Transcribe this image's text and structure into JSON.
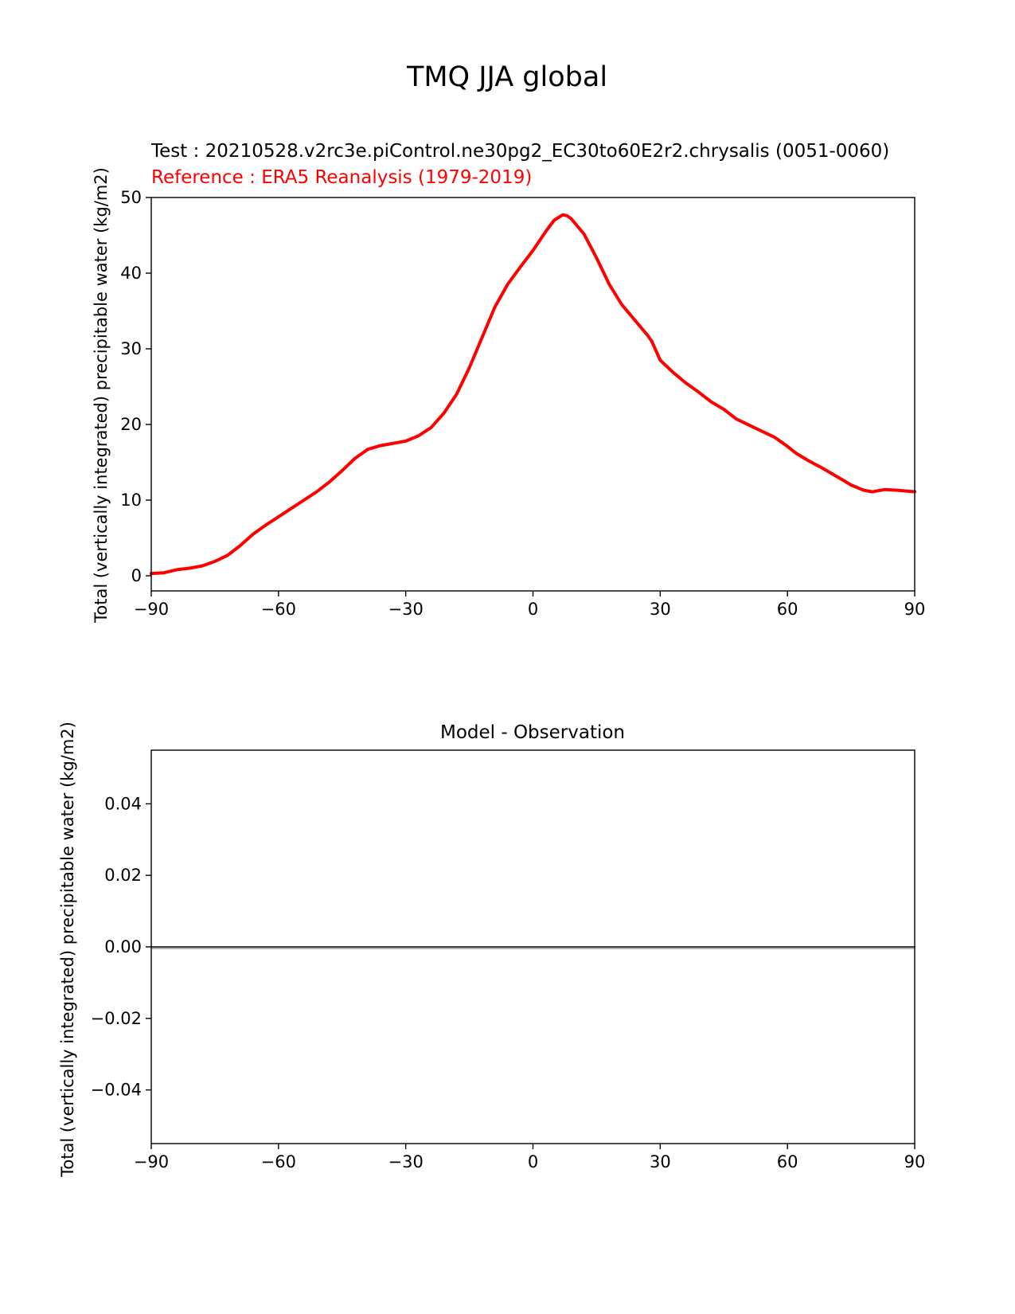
{
  "suptitle": "TMQ JJA global",
  "chart_data": [
    {
      "type": "line",
      "title_test": "Test : 20210528.v2rc3e.piControl.ne30pg2_EC30to60E2r2.chrysalis (0051-0060)",
      "title_reference": "Reference : ERA5 Reanalysis (1979-2019)",
      "ylabel": "Total (vertically integrated) precipitable water (kg/m2)",
      "xlim": [
        -90,
        90
      ],
      "ylim": [
        -2,
        50
      ],
      "xticks": [
        -90,
        -60,
        -30,
        0,
        30,
        60,
        90
      ],
      "xtick_labels": [
        "−90",
        "−60",
        "−30",
        "0",
        "30",
        "60",
        "90"
      ],
      "yticks": [
        0,
        10,
        20,
        30,
        40,
        50
      ],
      "ytick_labels": [
        "0",
        "10",
        "20",
        "30",
        "40",
        "50"
      ],
      "grid": false,
      "series": [
        {
          "color": "#ff0000",
          "x": [
            -90,
            -87,
            -84,
            -81,
            -78,
            -75,
            -72,
            -69,
            -66,
            -63,
            -60,
            -57,
            -54,
            -51,
            -48,
            -45,
            -42,
            -39,
            -36,
            -33,
            -30,
            -27,
            -24,
            -21,
            -18,
            -15,
            -12,
            -9,
            -6,
            -3,
            0,
            3,
            5,
            7,
            8,
            9,
            12,
            15,
            18,
            21,
            24,
            27,
            28,
            30,
            33,
            36,
            39,
            42,
            45,
            48,
            51,
            54,
            57,
            60,
            62,
            65,
            68,
            72,
            75,
            78,
            80,
            83,
            86,
            90
          ],
          "y": [
            0.3,
            0.4,
            0.8,
            1.0,
            1.3,
            1.9,
            2.7,
            4.0,
            5.5,
            6.7,
            7.8,
            8.9,
            10.0,
            11.1,
            12.4,
            13.9,
            15.5,
            16.7,
            17.2,
            17.5,
            17.8,
            18.5,
            19.6,
            21.5,
            24.0,
            27.5,
            31.5,
            35.5,
            38.5,
            40.8,
            43.0,
            45.5,
            47.0,
            47.7,
            47.6,
            47.2,
            45.2,
            42.0,
            38.5,
            35.8,
            33.8,
            31.8,
            31.0,
            28.5,
            26.9,
            25.5,
            24.3,
            23.0,
            22.0,
            20.7,
            19.9,
            19.1,
            18.3,
            17.1,
            16.2,
            15.2,
            14.3,
            13.0,
            12.0,
            11.3,
            11.1,
            11.4,
            11.3,
            11.1
          ]
        }
      ]
    },
    {
      "type": "line",
      "title": "Model - Observation",
      "ylabel": "Total (vertically integrated) precipitable water (kg/m2)",
      "xlim": [
        -90,
        90
      ],
      "ylim": [
        -0.055,
        0.055
      ],
      "xticks": [
        -90,
        -60,
        -30,
        0,
        30,
        60,
        90
      ],
      "xtick_labels": [
        "−90",
        "−60",
        "−30",
        "0",
        "30",
        "60",
        "90"
      ],
      "yticks": [
        -0.04,
        -0.02,
        0.0,
        0.02,
        0.04
      ],
      "ytick_labels": [
        "−0.04",
        "−0.02",
        "0.00",
        "0.02",
        "0.04"
      ],
      "grid": false,
      "zero_line": 0.0,
      "series": [
        {
          "color": "#000000",
          "x": [
            -90,
            90
          ],
          "y": [
            0.0,
            0.0
          ]
        }
      ]
    }
  ]
}
